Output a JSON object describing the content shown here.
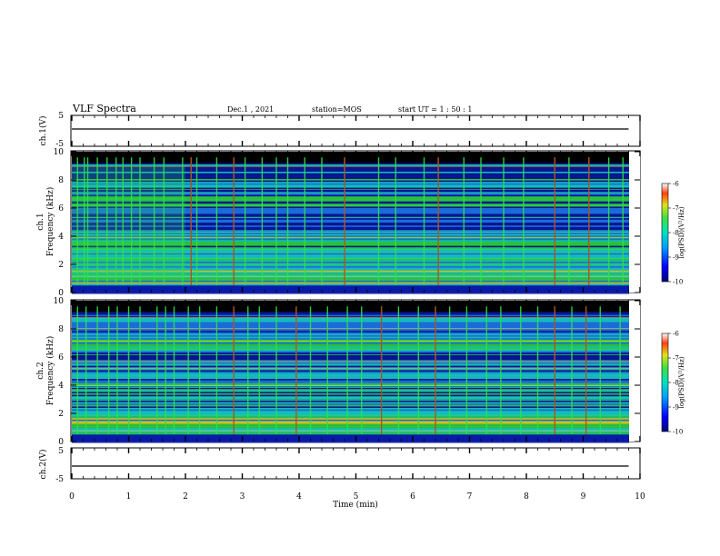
{
  "header": {
    "title": "VLF Spectra",
    "date": "Dec.1 , 2021",
    "station": "station=MOS",
    "start": "start UT =  1 : 50 : 1"
  },
  "chart_data": [
    {
      "type": "line",
      "name": "ch1-voltage",
      "ylabel": "ch.1(V)",
      "ylim": [
        -5,
        5
      ],
      "yticks": [
        "5",
        "-5"
      ],
      "xlim": [
        0,
        10
      ],
      "x": [
        0,
        9.8
      ],
      "y": [
        0,
        0
      ]
    },
    {
      "type": "heatmap",
      "name": "ch1-spectrogram",
      "ylabel": "Frequency (kHz)",
      "channel_label": "ch.1",
      "ylim": [
        0,
        10
      ],
      "yticks": [
        "0",
        "2",
        "4",
        "6",
        "8",
        "10"
      ],
      "xlim": [
        0,
        10
      ],
      "colorbar": {
        "label": "log(PSD)(V²/Hz)",
        "range": [
          -10,
          -6
        ],
        "ticks": [
          "-6",
          "-7",
          "-8",
          "-9",
          "-10"
        ]
      },
      "spike_times_min": [
        0.1,
        0.22,
        0.28,
        0.45,
        0.62,
        0.78,
        0.9,
        1.05,
        1.2,
        1.45,
        1.62,
        1.95,
        2.1,
        2.2,
        2.55,
        2.85,
        3.05,
        3.35,
        3.6,
        3.8,
        4.1,
        4.4,
        4.8,
        5.4,
        5.7,
        6.2,
        6.45,
        6.9,
        7.2,
        7.6,
        7.95,
        8.5,
        8.75,
        9.1,
        9.45,
        9.7
      ],
      "bright_spike_times_min": [
        2.1,
        2.85,
        4.8,
        6.45,
        8.5,
        9.1
      ]
    },
    {
      "type": "heatmap",
      "name": "ch2-spectrogram",
      "ylabel": "Frequency (kHz)",
      "channel_label": "ch.2",
      "ylim": [
        0,
        10
      ],
      "yticks": [
        "0",
        "2",
        "4",
        "6",
        "8",
        "10"
      ],
      "xlim": [
        0,
        10
      ],
      "colorbar": {
        "label": "log(PSD)(V²/Hz)",
        "range": [
          -10,
          -6
        ],
        "ticks": [
          "-6",
          "-7",
          "-8",
          "-9",
          "-10"
        ]
      },
      "spike_times_min": [
        0.1,
        0.25,
        0.45,
        0.65,
        0.8,
        1.0,
        1.2,
        1.5,
        1.65,
        1.8,
        2.05,
        2.25,
        2.55,
        2.85,
        3.1,
        3.3,
        3.6,
        3.95,
        4.2,
        4.5,
        4.85,
        5.1,
        5.45,
        5.75,
        6.1,
        6.4,
        6.65,
        6.95,
        7.3,
        7.55,
        7.9,
        8.2,
        8.5,
        8.8,
        9.05,
        9.3,
        9.65
      ],
      "bright_spike_times_min": [
        2.85,
        3.95,
        5.45,
        6.4,
        8.5,
        9.05
      ]
    },
    {
      "type": "line",
      "name": "ch2-voltage",
      "ylabel": "ch.2(V)",
      "ylim": [
        -5,
        5
      ],
      "yticks": [
        "5",
        "-5"
      ],
      "xlim": [
        0,
        10
      ],
      "x": [
        0,
        9.8
      ],
      "y": [
        0,
        0
      ],
      "xlabel": "Time (min)",
      "xticks": [
        "0",
        "1",
        "2",
        "3",
        "4",
        "5",
        "6",
        "7",
        "8",
        "9",
        "10"
      ]
    }
  ],
  "colors": {
    "background": "#000000",
    "low": "#0a1aa8",
    "mid": "#1e7cff",
    "cyan": "#18d8d8",
    "green": "#2ee04a",
    "yellow": "#e8e020",
    "red": "#e02010"
  }
}
